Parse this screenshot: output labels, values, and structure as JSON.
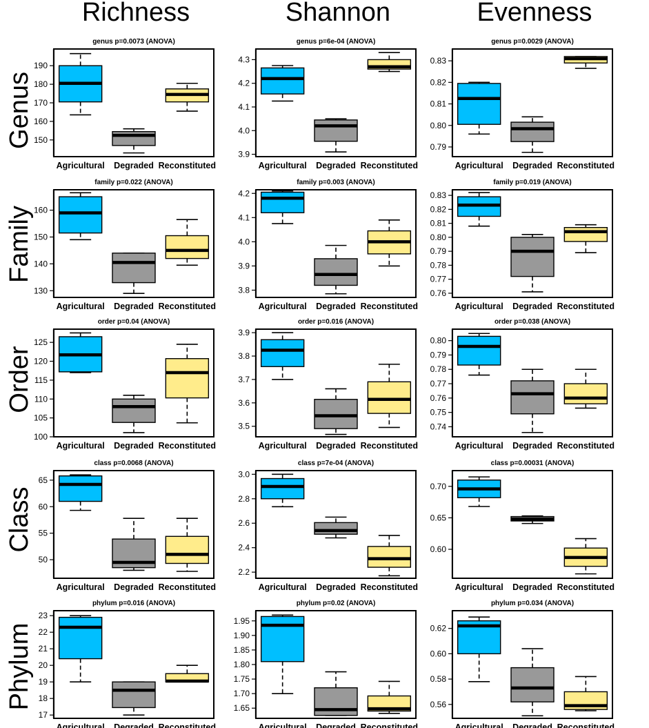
{
  "column_titles": [
    "Richness",
    "Shannon",
    "Evenness"
  ],
  "row_titles": [
    "Genus",
    "Family",
    "Order",
    "Class",
    "Phylum"
  ],
  "group_colors": {
    "Agricultural": "#00BFFF",
    "Degraded": "#999999",
    "Reconstituted": "#FFEC8B"
  },
  "chart_data": [
    {
      "type": "box",
      "title": "genus p=0.0073 (ANOVA)",
      "row": 0,
      "col": 0,
      "categories": [
        "Agricultural",
        "Degraded",
        "Reconstituted"
      ],
      "yticks": [
        150,
        160,
        170,
        180,
        190
      ],
      "ylim": [
        141,
        199
      ],
      "boxes": [
        {
          "min": 163.5,
          "q1": 170.5,
          "median": 180.5,
          "q3": 190,
          "max": 196.5
        },
        {
          "min": 143,
          "q1": 147,
          "median": 152.5,
          "q3": 154.5,
          "max": 156
        },
        {
          "min": 165.5,
          "q1": 170.5,
          "median": 174.5,
          "q3": 177.5,
          "max": 180.5
        }
      ]
    },
    {
      "type": "box",
      "title": "genus p=6e-04 (ANOVA)",
      "row": 0,
      "col": 1,
      "categories": [
        "Agricultural",
        "Degraded",
        "Reconstituted"
      ],
      "yticks": [
        3.9,
        4.0,
        4.1,
        4.2,
        4.3
      ],
      "ylim": [
        3.89,
        4.345
      ],
      "boxes": [
        {
          "min": 4.125,
          "q1": 4.155,
          "median": 4.22,
          "q3": 4.265,
          "max": 4.275
        },
        {
          "min": 3.91,
          "q1": 3.955,
          "median": 4.02,
          "q3": 4.045,
          "max": 4.05
        },
        {
          "min": 4.25,
          "q1": 4.26,
          "median": 4.27,
          "q3": 4.3,
          "max": 4.33
        }
      ]
    },
    {
      "type": "box",
      "title": "genus p=0.0029 (ANOVA)",
      "row": 0,
      "col": 2,
      "categories": [
        "Agricultural",
        "Degraded",
        "Reconstituted"
      ],
      "yticks": [
        0.79,
        0.8,
        0.81,
        0.82,
        0.83
      ],
      "ylim": [
        0.7855,
        0.8355
      ],
      "boxes": [
        {
          "min": 0.796,
          "q1": 0.8005,
          "median": 0.8125,
          "q3": 0.8195,
          "max": 0.82
        },
        {
          "min": 0.7875,
          "q1": 0.7925,
          "median": 0.7985,
          "q3": 0.8015,
          "max": 0.804
        },
        {
          "min": 0.8265,
          "q1": 0.829,
          "median": 0.831,
          "q3": 0.832,
          "max": 0.832
        }
      ]
    },
    {
      "type": "box",
      "title": "family p=0.022 (ANOVA)",
      "row": 1,
      "col": 0,
      "categories": [
        "Agricultural",
        "Degraded",
        "Reconstituted"
      ],
      "yticks": [
        130,
        140,
        150,
        160
      ],
      "ylim": [
        127.5,
        167.6
      ],
      "boxes": [
        {
          "min": 149,
          "q1": 151.5,
          "median": 159,
          "q3": 165,
          "max": 166.5
        },
        {
          "min": 129,
          "q1": 133,
          "median": 140.5,
          "q3": 144,
          "max": 144
        },
        {
          "min": 139.5,
          "q1": 142,
          "median": 145,
          "q3": 150.5,
          "max": 156.5
        }
      ]
    },
    {
      "type": "box",
      "title": "family p=0.003 (ANOVA)",
      "row": 1,
      "col": 1,
      "categories": [
        "Agricultural",
        "Degraded",
        "Reconstituted"
      ],
      "yticks": [
        3.8,
        3.9,
        4.0,
        4.1,
        4.2
      ],
      "ylim": [
        3.77,
        4.215
      ],
      "boxes": [
        {
          "min": 4.075,
          "q1": 4.12,
          "median": 4.18,
          "q3": 4.205,
          "max": 4.21
        },
        {
          "min": 3.785,
          "q1": 3.82,
          "median": 3.865,
          "q3": 3.93,
          "max": 3.985
        },
        {
          "min": 3.9,
          "q1": 3.95,
          "median": 4.0,
          "q3": 4.045,
          "max": 4.09
        }
      ]
    },
    {
      "type": "box",
      "title": "family p=0.019 (ANOVA)",
      "row": 1,
      "col": 2,
      "categories": [
        "Agricultural",
        "Degraded",
        "Reconstituted"
      ],
      "yticks": [
        0.76,
        0.77,
        0.78,
        0.79,
        0.8,
        0.81,
        0.82,
        0.83
      ],
      "ylim": [
        0.757,
        0.834
      ],
      "boxes": [
        {
          "min": 0.808,
          "q1": 0.815,
          "median": 0.823,
          "q3": 0.829,
          "max": 0.832
        },
        {
          "min": 0.761,
          "q1": 0.772,
          "median": 0.79,
          "q3": 0.8,
          "max": 0.802
        },
        {
          "min": 0.789,
          "q1": 0.797,
          "median": 0.804,
          "q3": 0.807,
          "max": 0.809
        }
      ]
    },
    {
      "type": "box",
      "title": "order p=0.04 (ANOVA)",
      "row": 2,
      "col": 0,
      "categories": [
        "Agricultural",
        "Degraded",
        "Reconstituted"
      ],
      "yticks": [
        100,
        105,
        110,
        115,
        120,
        125
      ],
      "ylim": [
        100,
        128.5
      ],
      "boxes": [
        {
          "min": 117,
          "q1": 117.2,
          "median": 121.7,
          "q3": 126.5,
          "max": 127.5
        },
        {
          "min": 101.1,
          "q1": 103.8,
          "median": 108,
          "q3": 110,
          "max": 111
        },
        {
          "min": 103.7,
          "q1": 110.3,
          "median": 117,
          "q3": 120.7,
          "max": 124.5
        }
      ]
    },
    {
      "type": "box",
      "title": "order p=0.016 (ANOVA)",
      "row": 2,
      "col": 1,
      "categories": [
        "Agricultural",
        "Degraded",
        "Reconstituted"
      ],
      "yticks": [
        3.5,
        3.6,
        3.7,
        3.8,
        3.9
      ],
      "ylim": [
        3.455,
        3.915
      ],
      "boxes": [
        {
          "min": 3.7,
          "q1": 3.755,
          "median": 3.825,
          "q3": 3.87,
          "max": 3.9
        },
        {
          "min": 3.465,
          "q1": 3.49,
          "median": 3.545,
          "q3": 3.615,
          "max": 3.66
        },
        {
          "min": 3.495,
          "q1": 3.555,
          "median": 3.615,
          "q3": 3.69,
          "max": 3.765
        }
      ]
    },
    {
      "type": "box",
      "title": "order p=0.038 (ANOVA)",
      "row": 2,
      "col": 2,
      "categories": [
        "Agricultural",
        "Degraded",
        "Reconstituted"
      ],
      "yticks": [
        0.74,
        0.75,
        0.76,
        0.77,
        0.78,
        0.79,
        0.8
      ],
      "ylim": [
        0.733,
        0.808
      ],
      "boxes": [
        {
          "min": 0.776,
          "q1": 0.783,
          "median": 0.796,
          "q3": 0.803,
          "max": 0.805
        },
        {
          "min": 0.736,
          "q1": 0.749,
          "median": 0.763,
          "q3": 0.772,
          "max": 0.78
        },
        {
          "min": 0.753,
          "q1": 0.756,
          "median": 0.76,
          "q3": 0.77,
          "max": 0.78
        }
      ]
    },
    {
      "type": "box",
      "title": "class p=0.0068 (ANOVA)",
      "row": 3,
      "col": 0,
      "categories": [
        "Agricultural",
        "Degraded",
        "Reconstituted"
      ],
      "yticks": [
        50,
        55,
        60,
        65
      ],
      "ylim": [
        46.5,
        66.8
      ],
      "boxes": [
        {
          "min": 59.3,
          "q1": 61,
          "median": 64.2,
          "q3": 65.8,
          "max": 66
        },
        {
          "min": 48,
          "q1": 48.5,
          "median": 49.5,
          "q3": 53.9,
          "max": 57.8
        },
        {
          "min": 47.8,
          "q1": 49.3,
          "median": 51,
          "q3": 54.4,
          "max": 57.8
        }
      ]
    },
    {
      "type": "box",
      "title": "class p=7e-04 (ANOVA)",
      "row": 3,
      "col": 1,
      "categories": [
        "Agricultural",
        "Degraded",
        "Reconstituted"
      ],
      "yticks": [
        2.2,
        2.4,
        2.6,
        2.8,
        3.0
      ],
      "ylim": [
        2.15,
        3.03
      ],
      "boxes": [
        {
          "min": 2.735,
          "q1": 2.8,
          "median": 2.9,
          "q3": 2.965,
          "max": 3.0
        },
        {
          "min": 2.48,
          "q1": 2.51,
          "median": 2.54,
          "q3": 2.605,
          "max": 2.65
        },
        {
          "min": 2.17,
          "q1": 2.24,
          "median": 2.31,
          "q3": 2.41,
          "max": 2.5
        }
      ]
    },
    {
      "type": "box",
      "title": "class p=0.00031 (ANOVA)",
      "row": 3,
      "col": 2,
      "categories": [
        "Agricultural",
        "Degraded",
        "Reconstituted"
      ],
      "yticks": [
        0.6,
        0.65,
        0.7
      ],
      "ylim": [
        0.554,
        0.725
      ],
      "boxes": [
        {
          "min": 0.668,
          "q1": 0.682,
          "median": 0.696,
          "q3": 0.71,
          "max": 0.715
        },
        {
          "min": 0.641,
          "q1": 0.645,
          "median": 0.648,
          "q3": 0.652,
          "max": 0.653
        },
        {
          "min": 0.561,
          "q1": 0.573,
          "median": 0.587,
          "q3": 0.602,
          "max": 0.617
        }
      ]
    },
    {
      "type": "box",
      "title": "phylum p=0.016 (ANOVA)",
      "row": 4,
      "col": 0,
      "categories": [
        "Agricultural",
        "Degraded",
        "Reconstituted"
      ],
      "yticks": [
        17,
        18,
        19,
        20,
        21,
        22,
        23
      ],
      "ylim": [
        16.8,
        23.3
      ],
      "boxes": [
        {
          "min": 19,
          "q1": 20.4,
          "median": 22.3,
          "q3": 22.9,
          "max": 23
        },
        {
          "min": 17,
          "q1": 17.45,
          "median": 18.5,
          "q3": 19,
          "max": 19
        },
        {
          "min": 19,
          "q1": 19,
          "median": 19.05,
          "q3": 19.5,
          "max": 20
        }
      ]
    },
    {
      "type": "box",
      "title": "phylum p=0.02 (ANOVA)",
      "row": 4,
      "col": 1,
      "categories": [
        "Agricultural",
        "Degraded",
        "Reconstituted"
      ],
      "yticks": [
        1.65,
        1.7,
        1.75,
        1.8,
        1.85,
        1.9,
        1.95
      ],
      "ylim": [
        1.615,
        1.985
      ],
      "boxes": [
        {
          "min": 1.7,
          "q1": 1.81,
          "median": 1.935,
          "q3": 1.965,
          "max": 1.97
        },
        {
          "min": 1.625,
          "q1": 1.625,
          "median": 1.645,
          "q3": 1.72,
          "max": 1.775
        },
        {
          "min": 1.632,
          "q1": 1.64,
          "median": 1.648,
          "q3": 1.692,
          "max": 1.742
        }
      ]
    },
    {
      "type": "box",
      "title": "phylum p=0.034 (ANOVA)",
      "row": 4,
      "col": 2,
      "categories": [
        "Agricultural",
        "Degraded",
        "Reconstituted"
      ],
      "yticks": [
        0.56,
        0.58,
        0.6,
        0.62
      ],
      "ylim": [
        0.549,
        0.634
      ],
      "boxes": [
        {
          "min": 0.578,
          "q1": 0.6,
          "median": 0.622,
          "q3": 0.626,
          "max": 0.629
        },
        {
          "min": 0.551,
          "q1": 0.562,
          "median": 0.573,
          "q3": 0.589,
          "max": 0.604
        },
        {
          "min": 0.555,
          "q1": 0.556,
          "median": 0.559,
          "q3": 0.57,
          "max": 0.582
        }
      ]
    }
  ]
}
